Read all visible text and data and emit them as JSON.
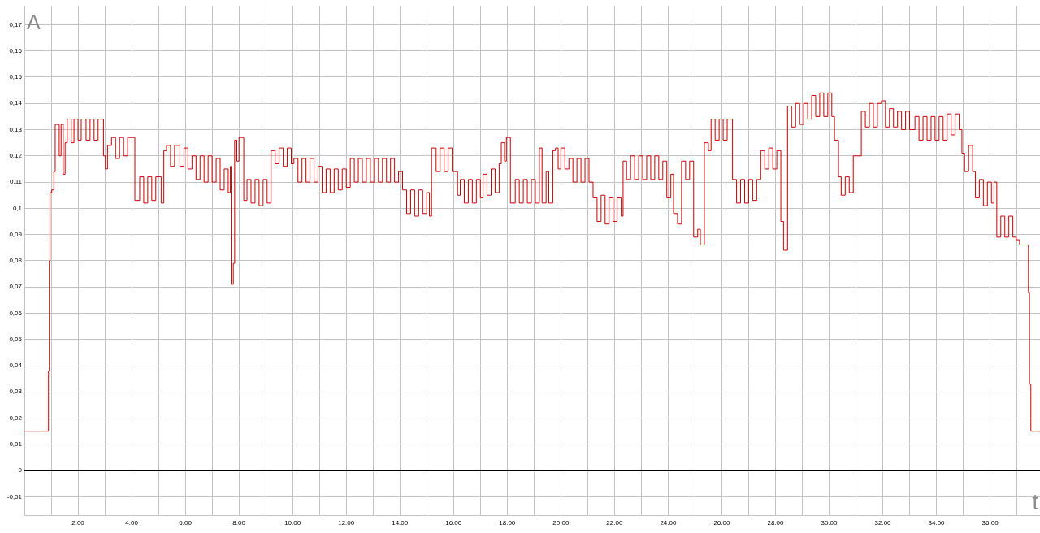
{
  "chart_data": {
    "type": "step",
    "xlabel": "t",
    "ylabel": "A",
    "color": "#cc0000",
    "x": [
      0,
      0.9,
      0.93,
      0.96,
      1.02,
      1.1,
      1.15,
      1.3,
      1.37,
      1.45,
      1.52,
      1.6,
      1.75,
      1.85,
      2,
      2.12,
      2.3,
      2.45,
      2.6,
      2.75,
      2.95,
      3.02,
      3.1,
      3.25,
      3.4,
      3.55,
      3.7,
      3.85,
      4.12,
      4.3,
      4.45,
      4.6,
      4.75,
      4.9,
      5.1,
      5.2,
      5.3,
      5.45,
      5.6,
      5.8,
      5.95,
      6.1,
      6.25,
      6.4,
      6.55,
      6.7,
      6.85,
      7,
      7.15,
      7.3,
      7.45,
      7.6,
      7.68,
      7.71,
      7.79,
      7.84,
      7.92,
      8,
      8.18,
      8.3,
      8.45,
      8.6,
      8.75,
      8.9,
      9.05,
      9.2,
      9.35,
      9.5,
      9.65,
      9.8,
      9.95,
      10.05,
      10.2,
      10.35,
      10.5,
      10.65,
      10.8,
      10.95,
      11.1,
      11.25,
      11.4,
      11.55,
      11.7,
      11.85,
      12,
      12.15,
      12.3,
      12.45,
      12.6,
      12.75,
      12.9,
      13.05,
      13.2,
      13.35,
      13.5,
      13.65,
      13.8,
      13.95,
      14.1,
      14.25,
      14.4,
      14.55,
      14.7,
      14.85,
      15,
      15.1,
      15.18,
      15.35,
      15.5,
      15.65,
      15.8,
      15.95,
      16.15,
      16.25,
      16.4,
      16.55,
      16.7,
      16.85,
      17,
      17.1,
      17.25,
      17.4,
      17.55,
      17.7,
      17.78,
      17.9,
      17.97,
      18.12,
      18.3,
      18.45,
      18.6,
      18.75,
      18.9,
      19.05,
      19.2,
      19.3,
      19.45,
      19.55,
      19.7,
      19.8,
      19.9,
      20,
      20.15,
      20.3,
      20.45,
      20.6,
      20.75,
      20.9,
      21.05,
      21.2,
      21.35,
      21.5,
      21.65,
      21.8,
      21.95,
      22.1,
      22.25,
      22.32,
      22.45,
      22.6,
      22.75,
      22.9,
      23.05,
      23.2,
      23.35,
      23.5,
      23.65,
      23.8,
      23.95,
      24.1,
      24.2,
      24.35,
      24.5,
      24.65,
      24.8,
      24.95,
      25.1,
      25.2,
      25.35,
      25.5,
      25.6,
      25.75,
      25.9,
      26.05,
      26.2,
      26.4,
      26.55,
      26.7,
      26.85,
      27,
      27.15,
      27.3,
      27.45,
      27.6,
      27.75,
      27.9,
      28.05,
      28.2,
      28.3,
      28.45,
      28.6,
      28.75,
      28.9,
      29.05,
      29.2,
      29.35,
      29.5,
      29.65,
      29.8,
      29.95,
      30.1,
      30.2,
      30.35,
      30.45,
      30.6,
      30.75,
      30.9,
      31.2,
      31.35,
      31.5,
      31.65,
      31.8,
      31.95,
      32.1,
      32.25,
      32.4,
      32.55,
      32.7,
      32.85,
      33,
      33.2,
      33.35,
      33.5,
      33.65,
      33.8,
      33.95,
      34.1,
      34.25,
      34.4,
      34.55,
      34.7,
      34.85,
      34.95,
      35.05,
      35.2,
      35.35,
      35.45,
      35.6,
      35.75,
      35.9,
      36.05,
      36.15,
      36.25,
      36.4,
      36.55,
      36.7,
      36.85,
      36.97,
      37.1,
      37.43,
      37.47,
      37.52,
      37.86
    ],
    "values": [
      0.015,
      0.038,
      0.08,
      0.106,
      0.107,
      0.114,
      0.132,
      0.12,
      0.132,
      0.113,
      0.125,
      0.134,
      0.125,
      0.134,
      0.126,
      0.134,
      0.126,
      0.134,
      0.126,
      0.134,
      0.12,
      0.115,
      0.124,
      0.127,
      0.119,
      0.127,
      0.12,
      0.127,
      0.103,
      0.112,
      0.102,
      0.112,
      0.103,
      0.112,
      0.102,
      0.122,
      0.124,
      0.116,
      0.124,
      0.116,
      0.123,
      0.115,
      0.12,
      0.111,
      0.12,
      0.11,
      0.12,
      0.11,
      0.119,
      0.107,
      0.115,
      0.106,
      0.116,
      0.071,
      0.079,
      0.126,
      0.118,
      0.127,
      0.103,
      0.111,
      0.102,
      0.111,
      0.101,
      0.111,
      0.102,
      0.122,
      0.117,
      0.123,
      0.116,
      0.123,
      0.117,
      0.119,
      0.11,
      0.119,
      0.11,
      0.119,
      0.11,
      0.116,
      0.106,
      0.115,
      0.106,
      0.115,
      0.107,
      0.115,
      0.108,
      0.119,
      0.11,
      0.119,
      0.11,
      0.119,
      0.11,
      0.119,
      0.11,
      0.119,
      0.11,
      0.119,
      0.11,
      0.114,
      0.107,
      0.098,
      0.107,
      0.097,
      0.107,
      0.098,
      0.106,
      0.097,
      0.123,
      0.114,
      0.123,
      0.114,
      0.123,
      0.114,
      0.105,
      0.111,
      0.102,
      0.111,
      0.102,
      0.111,
      0.104,
      0.113,
      0.105,
      0.115,
      0.106,
      0.117,
      0.125,
      0.118,
      0.127,
      0.102,
      0.111,
      0.102,
      0.111,
      0.102,
      0.111,
      0.102,
      0.123,
      0.102,
      0.114,
      0.102,
      0.122,
      0.123,
      0.115,
      0.123,
      0.115,
      0.119,
      0.11,
      0.119,
      0.11,
      0.119,
      0.11,
      0.104,
      0.095,
      0.105,
      0.094,
      0.104,
      0.095,
      0.104,
      0.097,
      0.118,
      0.111,
      0.12,
      0.111,
      0.12,
      0.111,
      0.12,
      0.111,
      0.12,
      0.111,
      0.118,
      0.104,
      0.113,
      0.098,
      0.094,
      0.118,
      0.111,
      0.118,
      0.089,
      0.092,
      0.086,
      0.125,
      0.122,
      0.134,
      0.126,
      0.134,
      0.126,
      0.134,
      0.111,
      0.102,
      0.111,
      0.102,
      0.111,
      0.103,
      0.111,
      0.122,
      0.115,
      0.123,
      0.115,
      0.122,
      0.095,
      0.084,
      0.139,
      0.131,
      0.14,
      0.132,
      0.14,
      0.134,
      0.143,
      0.135,
      0.144,
      0.135,
      0.144,
      0.135,
      0.126,
      0.112,
      0.105,
      0.112,
      0.106,
      0.12,
      0.137,
      0.131,
      0.14,
      0.131,
      0.14,
      0.141,
      0.131,
      0.138,
      0.131,
      0.137,
      0.13,
      0.137,
      0.13,
      0.135,
      0.126,
      0.135,
      0.126,
      0.135,
      0.126,
      0.135,
      0.126,
      0.136,
      0.128,
      0.136,
      0.13,
      0.121,
      0.114,
      0.124,
      0.114,
      0.104,
      0.111,
      0.101,
      0.11,
      0.102,
      0.11,
      0.089,
      0.097,
      0.089,
      0.097,
      0.089,
      0.088,
      0.086,
      0.068,
      0.033,
      0.015,
      0.015
    ],
    "xlim": [
      0,
      37.86
    ],
    "ylim": [
      -0.017,
      0.177
    ],
    "xticks": [
      {
        "value": 0,
        "label": null
      },
      {
        "value": 1,
        "label": null
      },
      {
        "value": 2,
        "label": "2:00"
      },
      {
        "value": 3,
        "label": null
      },
      {
        "value": 4,
        "label": "4:00"
      },
      {
        "value": 5,
        "label": null
      },
      {
        "value": 6,
        "label": "6:00"
      },
      {
        "value": 7,
        "label": null
      },
      {
        "value": 8,
        "label": "8:00"
      },
      {
        "value": 9,
        "label": null
      },
      {
        "value": 10,
        "label": "10:00"
      },
      {
        "value": 11,
        "label": null
      },
      {
        "value": 12,
        "label": "12:00"
      },
      {
        "value": 13,
        "label": null
      },
      {
        "value": 14,
        "label": "14:00"
      },
      {
        "value": 15,
        "label": null
      },
      {
        "value": 16,
        "label": "16:00"
      },
      {
        "value": 17,
        "label": null
      },
      {
        "value": 18,
        "label": "18:00"
      },
      {
        "value": 19,
        "label": null
      },
      {
        "value": 20,
        "label": "20:00"
      },
      {
        "value": 21,
        "label": null
      },
      {
        "value": 22,
        "label": "22:00"
      },
      {
        "value": 23,
        "label": null
      },
      {
        "value": 24,
        "label": "24:00"
      },
      {
        "value": 25,
        "label": null
      },
      {
        "value": 26,
        "label": "26:00"
      },
      {
        "value": 27,
        "label": null
      },
      {
        "value": 28,
        "label": "28:00"
      },
      {
        "value": 29,
        "label": null
      },
      {
        "value": 30,
        "label": "30:00"
      },
      {
        "value": 31,
        "label": null
      },
      {
        "value": 32,
        "label": "32:00"
      },
      {
        "value": 33,
        "label": null
      },
      {
        "value": 34,
        "label": "34:00"
      },
      {
        "value": 35,
        "label": null
      },
      {
        "value": 36,
        "label": "36:00"
      },
      {
        "value": 37,
        "label": null
      }
    ],
    "yticks": [
      {
        "value": -0.01,
        "label": "-0,01"
      },
      0,
      {
        "value": 0.01,
        "label": "0,01"
      },
      {
        "value": 0.02,
        "label": "0,02"
      },
      {
        "value": 0.03,
        "label": "0,03"
      },
      {
        "value": 0.04,
        "label": "0,04"
      },
      {
        "value": 0.05,
        "label": "0,05"
      },
      {
        "value": 0.06,
        "label": "0,06"
      },
      {
        "value": 0.07,
        "label": "0,07"
      },
      {
        "value": 0.08,
        "label": "0,08"
      },
      {
        "value": 0.09,
        "label": "0,09"
      },
      {
        "value": 0.1,
        "label": "0,1"
      },
      {
        "value": 0.11,
        "label": "0,11"
      },
      {
        "value": 0.12,
        "label": "0,12"
      },
      {
        "value": 0.13,
        "label": "0,13"
      },
      {
        "value": 0.14,
        "label": "0,14"
      },
      {
        "value": 0.15,
        "label": "0,15"
      },
      {
        "value": 0.16,
        "label": "0,16"
      },
      {
        "value": 0.17,
        "label": "0,17"
      }
    ],
    "grid": true,
    "ref_lines": [
      {
        "axis": "y",
        "value": 0,
        "color": "#000000"
      }
    ]
  }
}
